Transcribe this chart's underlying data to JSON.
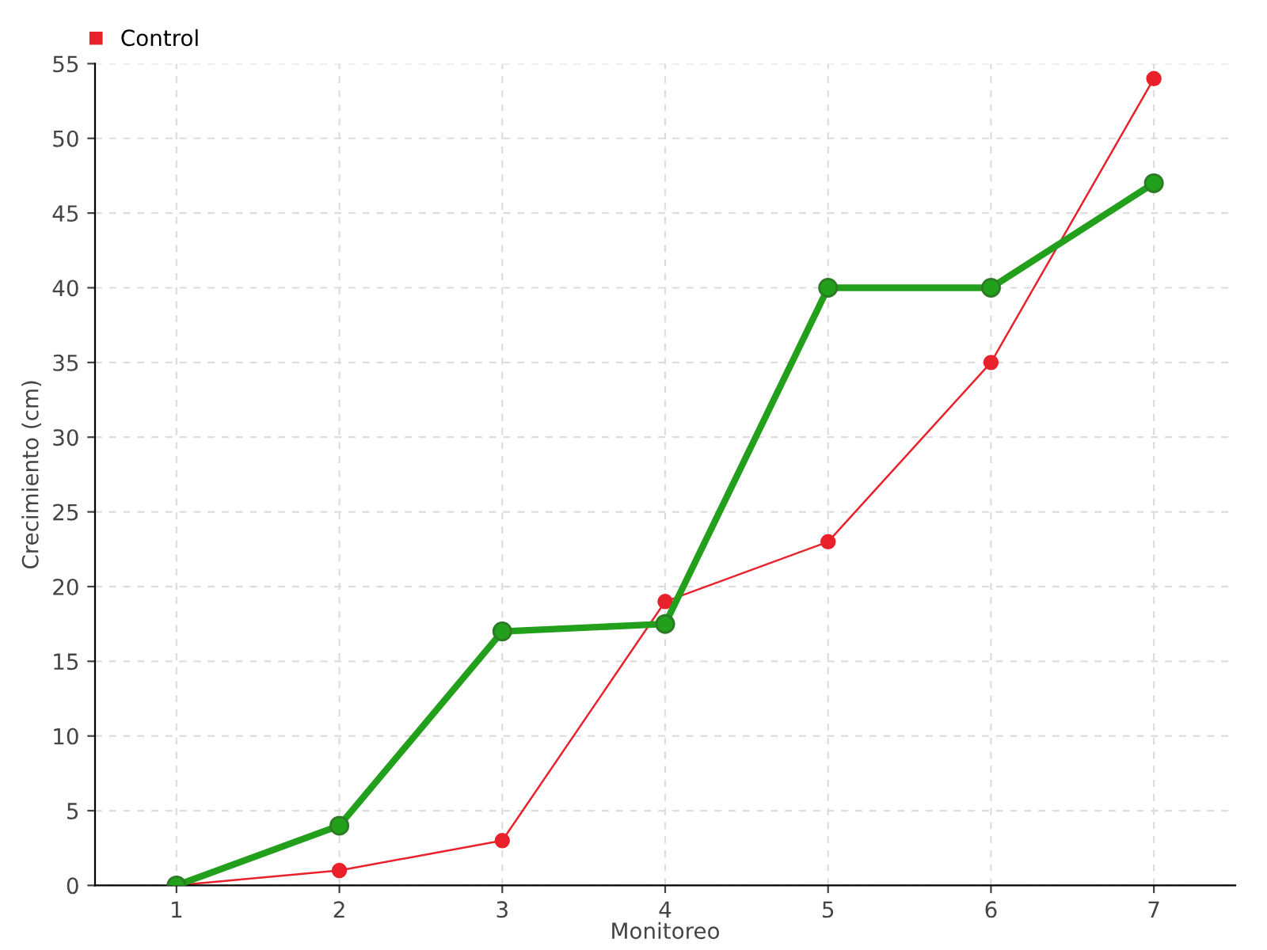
{
  "chart_data": {
    "type": "line",
    "xlabel": "Monitoreo",
    "ylabel": "Crecimiento (cm)",
    "x": [
      1,
      2,
      3,
      4,
      5,
      6,
      7
    ],
    "series": [
      {
        "color": "#22a01c",
        "values": [
          0,
          4,
          17,
          17.5,
          40,
          40,
          47
        ]
      },
      {
        "name": "Control",
        "color": "#e8212b",
        "values": [
          0,
          1,
          3,
          19,
          23,
          35,
          54
        ]
      }
    ],
    "xlim": [
      0.5,
      7.5
    ],
    "xticks": [
      1,
      2,
      3,
      4,
      5,
      6,
      7
    ],
    "ylim": [
      0,
      55
    ],
    "yticks": [
      0,
      5,
      10,
      15,
      20,
      25,
      30,
      35,
      40,
      45,
      50,
      55
    ],
    "grid": true,
    "legend": "top left",
    "marker": "circle",
    "line_style": "solid"
  }
}
